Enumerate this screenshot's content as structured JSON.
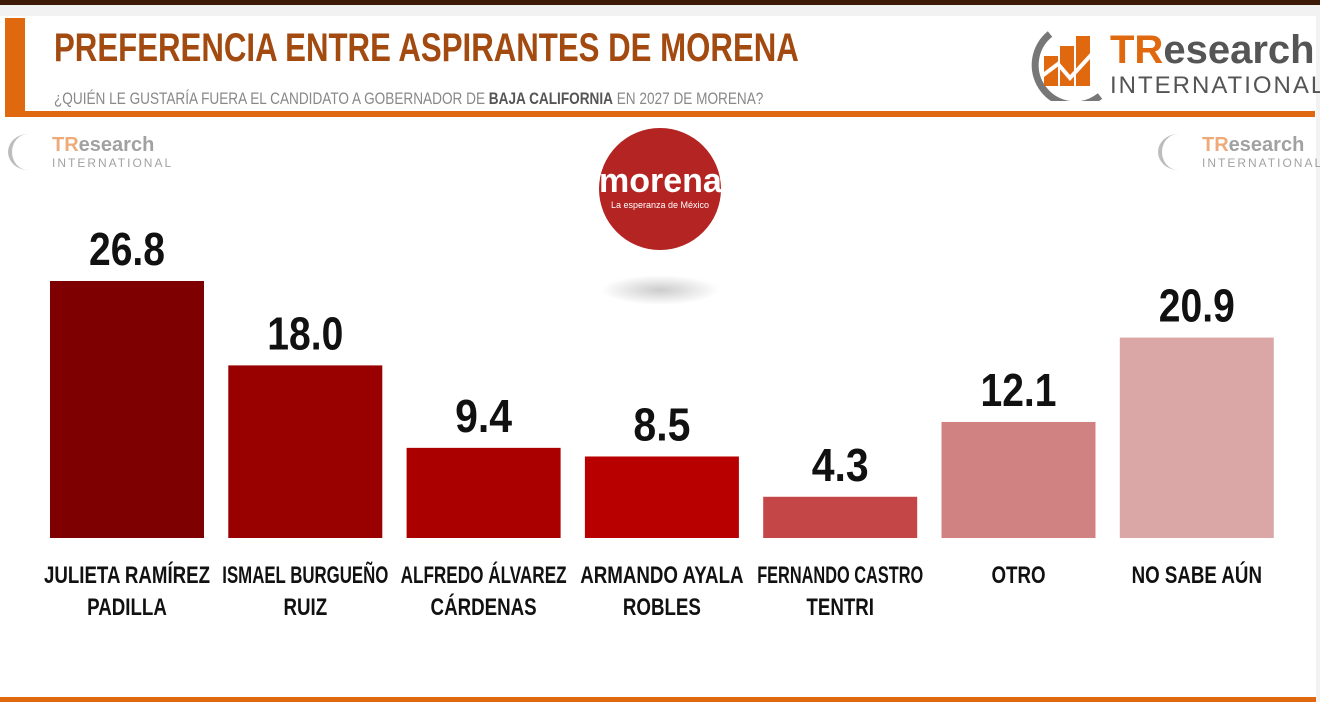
{
  "header": {
    "title": "PREFERENCIA ENTRE ASPIRANTES DE MORENA",
    "subtitle_pre": "¿QUIÉN LE GUSTARÍA FUERA EL CANDIDATO A GOBERNADOR DE ",
    "subtitle_bold": "BAJA CALIFORNIA",
    "subtitle_post": " EN 2027 DE MORENA?"
  },
  "logo": {
    "brand_a": "TR",
    "brand_b": "esearch",
    "line2": "INTERNATIONAL"
  },
  "party_logo": {
    "name": "morena",
    "tagline": "La esperanza de México"
  },
  "chart_data": {
    "type": "bar",
    "title": "PREFERENCIA ENTRE ASPIRANTES DE MORENA",
    "categories": [
      [
        "JULIETA RAMÍREZ",
        "PADILLA"
      ],
      [
        "ISMAEL BURGUEÑO",
        "RUIZ"
      ],
      [
        "ALFREDO ÁLVAREZ",
        "CÁRDENAS"
      ],
      [
        "ARMANDO AYALA",
        "ROBLES"
      ],
      [
        "FERNANDO CASTRO",
        "TENTRI"
      ],
      [
        "OTRO"
      ],
      [
        "NO SABE AÚN"
      ]
    ],
    "values": [
      26.8,
      18.0,
      9.4,
      8.5,
      4.3,
      12.1,
      20.9
    ],
    "labels": [
      "26.8",
      "18.0",
      "9.4",
      "8.5",
      "4.3",
      "12.1",
      "20.9"
    ],
    "colors": [
      "#7f0000",
      "#990000",
      "#ab0000",
      "#b80000",
      "#c44646",
      "#d08282",
      "#dba6a6"
    ],
    "ylim": [
      0,
      30
    ],
    "grid": false,
    "legend": "none"
  }
}
